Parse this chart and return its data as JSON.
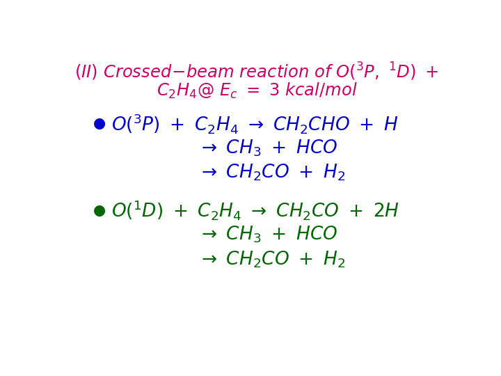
{
  "title_color": "#cc0066",
  "bg_color": "#ffffff",
  "blue_color": "#0000cc",
  "green_color": "#006600"
}
